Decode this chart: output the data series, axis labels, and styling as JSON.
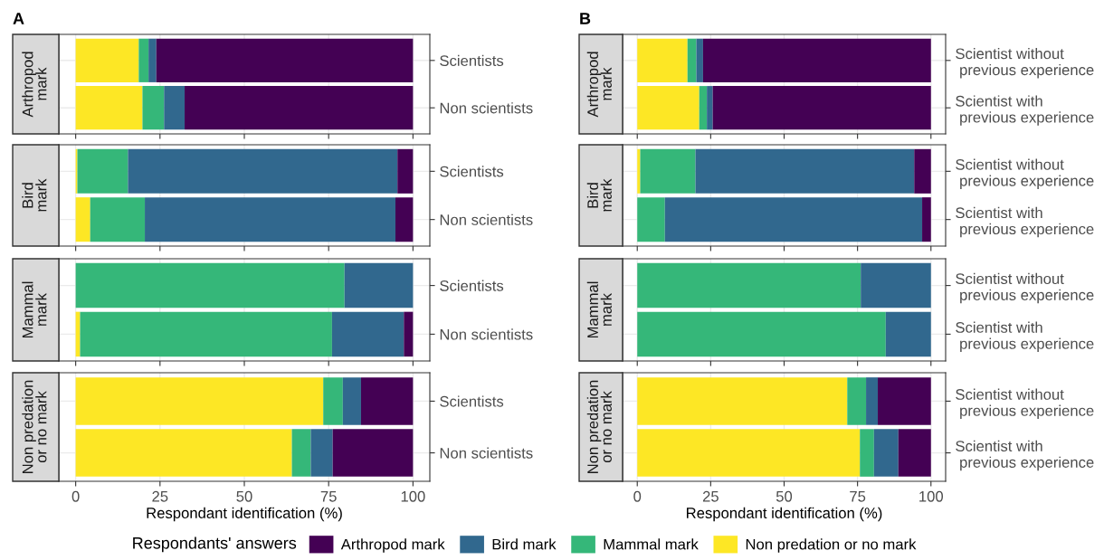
{
  "chart_data": [
    {
      "type": "bar",
      "orientation": "horizontal",
      "stacked": true,
      "title": "A",
      "ylabel": "Arthropod\nmark",
      "categories": [
        "Scientists",
        "Non scientists"
      ],
      "xlim": [
        -5,
        105
      ],
      "xticks": [
        0,
        25,
        50,
        75,
        100
      ],
      "tick_labels": "y",
      "grid": true,
      "legend": "bottom",
      "legend_title": "Respondants' answers",
      "series": [
        {
          "name": "Non predation or no mark",
          "color": "#fde725",
          "values": [
            18.7,
            19.8
          ]
        },
        {
          "name": "Mammal mark",
          "color": "#35b779",
          "values": [
            2.9,
            6.4
          ]
        },
        {
          "name": "Bird mark",
          "color": "#31688e",
          "values": [
            2.3,
            6.1
          ]
        },
        {
          "name": "Arthropod mark",
          "color": "#440154",
          "values": [
            76.1,
            67.7
          ]
        }
      ]
    },
    {
      "type": "bar",
      "orientation": "horizontal",
      "stacked": true,
      "ylabel": "Bird\nmark",
      "categories": [
        "Scientists",
        "Non scientists"
      ],
      "xlim": [
        -5,
        105
      ],
      "xticks": [
        0,
        25,
        50,
        75,
        100
      ],
      "tick_labels": "y",
      "grid": true,
      "series": [
        {
          "color": "#fde725",
          "values": [
            0.5,
            4.3
          ]
        },
        {
          "color": "#35b779",
          "values": [
            15.0,
            16.2
          ]
        },
        {
          "color": "#31688e",
          "values": [
            79.9,
            74.3
          ]
        },
        {
          "color": "#440154",
          "values": [
            4.6,
            5.2
          ]
        }
      ]
    },
    {
      "type": "bar",
      "orientation": "horizontal",
      "stacked": true,
      "ylabel": "Mammal\nmark",
      "categories": [
        "Scientists",
        "Non scientists"
      ],
      "xlim": [
        -5,
        105
      ],
      "xticks": [
        0,
        25,
        50,
        75,
        100
      ],
      "tick_labels": "y",
      "grid": true,
      "series": [
        {
          "color": "#fde725",
          "values": [
            0,
            1.3
          ]
        },
        {
          "color": "#35b779",
          "values": [
            79.7,
            74.7
          ]
        },
        {
          "color": "#31688e",
          "values": [
            20.3,
            21.3
          ]
        },
        {
          "color": "#440154",
          "values": [
            0,
            2.7
          ]
        }
      ]
    },
    {
      "type": "bar",
      "orientation": "horizontal",
      "stacked": true,
      "ylabel": "Non predation\nor no mark",
      "xlabel": "Respondant identification (%)",
      "categories": [
        "Scientists",
        "Non scientists"
      ],
      "xlim": [
        -5,
        105
      ],
      "xticks": [
        0,
        25,
        50,
        75,
        100
      ],
      "grid": true,
      "series": [
        {
          "color": "#fde725",
          "values": [
            73.4,
            64.1
          ]
        },
        {
          "color": "#35b779",
          "values": [
            5.8,
            5.6
          ]
        },
        {
          "color": "#31688e",
          "values": [
            5.4,
            6.5
          ]
        },
        {
          "color": "#440154",
          "values": [
            15.4,
            23.8
          ]
        }
      ]
    },
    {
      "type": "bar",
      "orientation": "horizontal",
      "stacked": true,
      "title": "B",
      "ylabel": "Arthropod\nmark",
      "categories": [
        "Scientist without\n previous experience",
        "Scientist with\n previous experience"
      ],
      "xlim": [
        -5,
        105
      ],
      "xticks": [
        0,
        25,
        50,
        75,
        100
      ],
      "tick_labels": "y",
      "grid": true,
      "series": [
        {
          "color": "#fde725",
          "values": [
            17.1,
            21.1
          ]
        },
        {
          "color": "#35b779",
          "values": [
            3.0,
            2.6
          ]
        },
        {
          "color": "#31688e",
          "values": [
            2.3,
            2.0
          ]
        },
        {
          "color": "#440154",
          "values": [
            77.6,
            74.3
          ]
        }
      ]
    },
    {
      "type": "bar",
      "orientation": "horizontal",
      "stacked": true,
      "ylabel": "Bird\nmark",
      "categories": [
        "Scientist without\n previous experience",
        "Scientist with\n previous experience"
      ],
      "xlim": [
        -5,
        105
      ],
      "xticks": [
        0,
        25,
        50,
        75,
        100
      ],
      "tick_labels": "y",
      "grid": true,
      "series": [
        {
          "color": "#fde725",
          "values": [
            1.0,
            0
          ]
        },
        {
          "color": "#35b779",
          "values": [
            18.8,
            9.4
          ]
        },
        {
          "color": "#31688e",
          "values": [
            74.5,
            87.6
          ]
        },
        {
          "color": "#440154",
          "values": [
            5.7,
            3.0
          ]
        }
      ]
    },
    {
      "type": "bar",
      "orientation": "horizontal",
      "stacked": true,
      "ylabel": "Mammal\nmark",
      "categories": [
        "Scientist without\n previous experience",
        "Scientist with\n previous experience"
      ],
      "xlim": [
        -5,
        105
      ],
      "xticks": [
        0,
        25,
        50,
        75,
        100
      ],
      "tick_labels": "y",
      "grid": true,
      "series": [
        {
          "color": "#fde725",
          "values": [
            0,
            0
          ]
        },
        {
          "color": "#35b779",
          "values": [
            76.1,
            84.6
          ]
        },
        {
          "color": "#31688e",
          "values": [
            23.9,
            15.4
          ]
        },
        {
          "color": "#440154",
          "values": [
            0,
            0
          ]
        }
      ]
    },
    {
      "type": "bar",
      "orientation": "horizontal",
      "stacked": true,
      "ylabel": "Non predation\nor no mark",
      "xlabel": "Respondant identification (%)",
      "categories": [
        "Scientist without\n previous experience",
        "Scientist with\n previous experience"
      ],
      "xlim": [
        -5,
        105
      ],
      "xticks": [
        0,
        25,
        50,
        75,
        100
      ],
      "grid": true,
      "series": [
        {
          "color": "#fde725",
          "values": [
            71.5,
            75.8
          ]
        },
        {
          "color": "#35b779",
          "values": [
            6.4,
            4.8
          ]
        },
        {
          "color": "#31688e",
          "values": [
            4.0,
            8.3
          ]
        },
        {
          "color": "#440154",
          "values": [
            18.1,
            11.1
          ]
        }
      ]
    }
  ]
}
